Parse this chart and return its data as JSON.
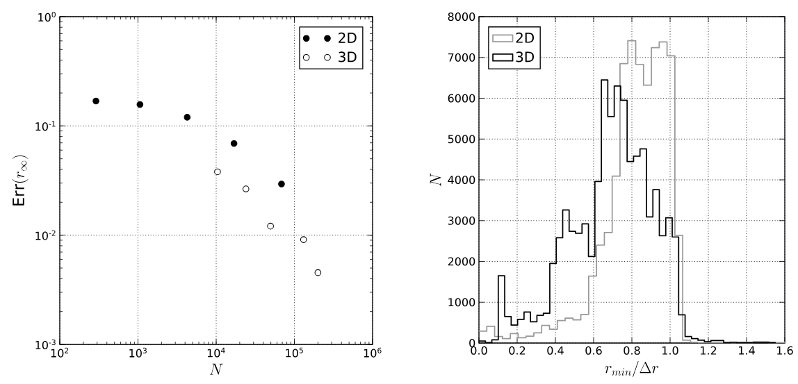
{
  "chart_data": [
    {
      "type": "scatter",
      "xlabel": "N",
      "ylabel": "\\mathrm{Err}(r_\\infty)",
      "log": "xy",
      "xlim": [
        100,
        1000000
      ],
      "ylim": [
        0.001,
        1
      ],
      "xticks": [
        {
          "value": 100,
          "label": "10$^{2}$"
        },
        {
          "value": 1000,
          "label": "10$^{3}$"
        },
        {
          "value": 10000,
          "label": "10$^{4}$"
        },
        {
          "value": 100000,
          "label": "10$^{5}$"
        },
        {
          "value": 1000000,
          "label": "10$^{6}$"
        }
      ],
      "yticks": [
        {
          "value": 0.001,
          "label": "10$^{-3}$"
        },
        {
          "value": 0.01,
          "label": "10$^{-2}$"
        },
        {
          "value": 0.1,
          "label": "10$^{-1}$"
        },
        {
          "value": 1,
          "label": "10$^{0}$"
        }
      ],
      "grid": true,
      "legend": "top right",
      "marker": "circle",
      "series": [
        {
          "name": "2D",
          "color": "#000000",
          "x": [
            290,
            1060,
            4260,
            16900,
            68400
          ],
          "values": [
            0.169,
            0.157,
            0.12,
            0.069,
            0.0294
          ]
        },
        {
          "name": "3D",
          "color": "#ffffff",
          "x": [
            10400,
            24000,
            49500,
            131000,
            200000
          ],
          "values": [
            0.038,
            0.0265,
            0.0121,
            0.0091,
            0.00454
          ]
        }
      ]
    },
    {
      "type": "step",
      "xlabel": "r_{min}/\\Delta r",
      "ylabel": "N",
      "xlim": [
        0,
        1.6
      ],
      "ylim": [
        0,
        8000
      ],
      "xticks": [
        {
          "value": 0,
          "label": "0.0"
        },
        {
          "value": 0.2,
          "label": "0.2"
        },
        {
          "value": 0.4,
          "label": "0.4"
        },
        {
          "value": 0.6,
          "label": "0.6"
        },
        {
          "value": 0.8,
          "label": "0.8"
        },
        {
          "value": 1,
          "label": "1.0"
        },
        {
          "value": 1.2,
          "label": "1.2"
        },
        {
          "value": 1.4,
          "label": "1.4"
        },
        {
          "value": 1.6,
          "label": "1.6"
        }
      ],
      "yticks": [
        0,
        1000,
        2000,
        3000,
        4000,
        5000,
        6000,
        7000,
        8000
      ],
      "grid": true,
      "legend": "top left",
      "series": [
        {
          "name": "2D",
          "color": "#999999",
          "x": [
            0,
            0.041,
            0.082,
            0.123,
            0.164,
            0.205,
            0.246,
            0.287,
            0.328,
            0.369,
            0.41,
            0.451,
            0.492,
            0.533,
            0.574,
            0.615,
            0.656,
            0.697,
            0.738,
            0.779,
            0.82,
            0.861,
            0.902,
            0.943,
            0.984,
            1.025,
            1.066,
            1.107,
            1.148,
            1.189,
            1.23,
            1.271,
            1.312,
            1.353,
            1.394,
            1.435,
            1.476,
            1.517,
            1.558,
            1.599
          ],
          "values": [
            290,
            410,
            160,
            110,
            230,
            130,
            170,
            250,
            430,
            340,
            550,
            610,
            570,
            700,
            1640,
            2400,
            2710,
            4090,
            6850,
            7410,
            6830,
            6320,
            7240,
            7380,
            7040,
            2640,
            70,
            20,
            10,
            10,
            10,
            10,
            10,
            10,
            10,
            30,
            30,
            10,
            10,
            0
          ]
        },
        {
          "name": "3D",
          "color": "#000000",
          "x": [
            0,
            0.0337,
            0.0674,
            0.1011,
            0.1348,
            0.1685,
            0.2022,
            0.2359,
            0.2696,
            0.3033,
            0.337,
            0.3707,
            0.4044,
            0.4381,
            0.4718,
            0.5055,
            0.5392,
            0.5729,
            0.6066,
            0.6403,
            0.674,
            0.7077,
            0.7414,
            0.7751,
            0.8088,
            0.8425,
            0.8762,
            0.9099,
            0.9436,
            0.9773,
            1.011,
            1.0447,
            1.0784,
            1.1121,
            1.1458,
            1.1795,
            1.2132,
            1.2469,
            1.2806,
            1.3143,
            1.348,
            1.3817,
            1.4154,
            1.4491,
            1.4828,
            1.5165,
            1.5502
          ],
          "values": [
            50,
            10,
            80,
            1650,
            650,
            440,
            580,
            760,
            520,
            680,
            730,
            1950,
            2580,
            3260,
            2740,
            2690,
            2920,
            2120,
            3960,
            6450,
            5550,
            6300,
            5950,
            4450,
            4580,
            4760,
            3090,
            3760,
            2630,
            3070,
            2600,
            690,
            160,
            110,
            70,
            30,
            60,
            60,
            10,
            20,
            10,
            10,
            10,
            10,
            10,
            10,
            0
          ]
        }
      ]
    }
  ]
}
